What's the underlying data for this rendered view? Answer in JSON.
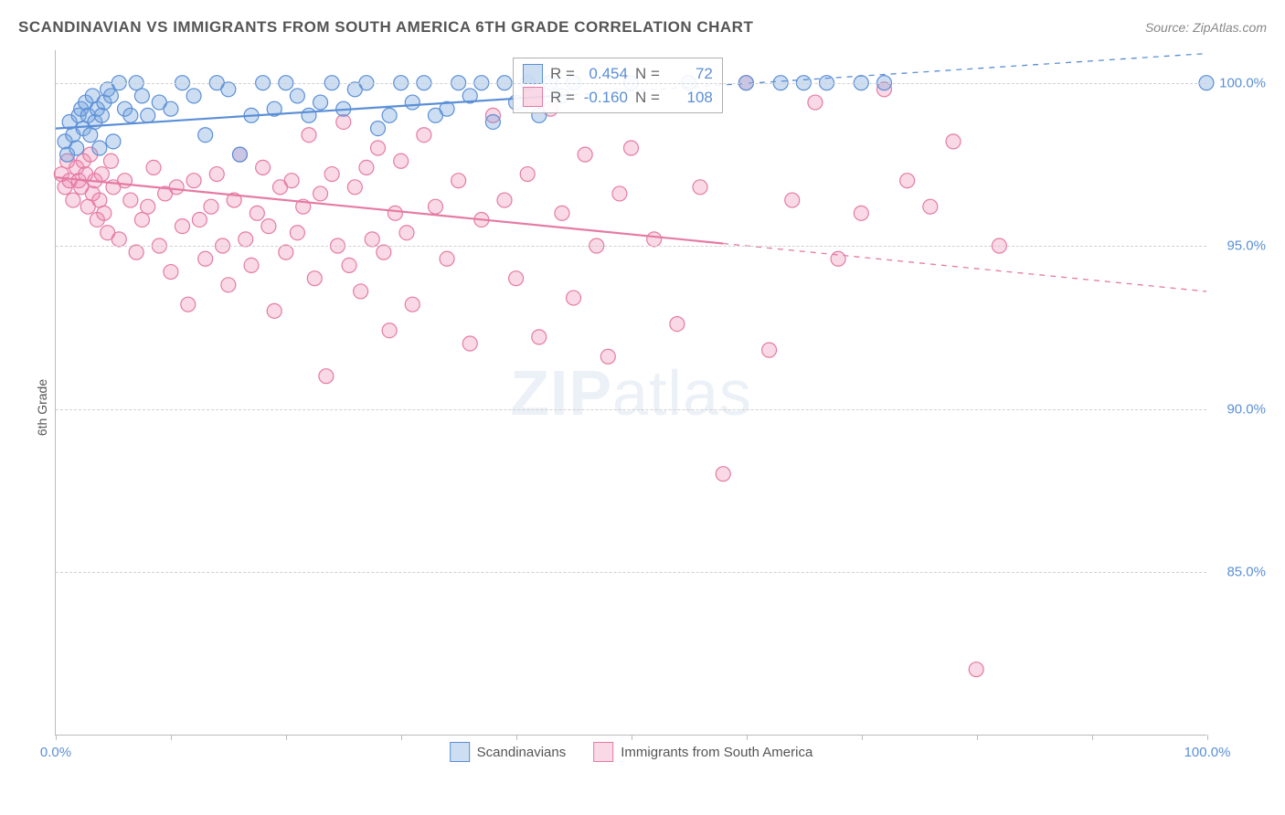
{
  "title": "SCANDINAVIAN VS IMMIGRANTS FROM SOUTH AMERICA 6TH GRADE CORRELATION CHART",
  "source": "Source: ZipAtlas.com",
  "y_axis_label": "6th Grade",
  "watermark_prefix": "ZIP",
  "watermark_suffix": "atlas",
  "colors": {
    "series_a_fill": "rgba(111,160,220,0.35)",
    "series_a_stroke": "#5b8fd6",
    "series_b_fill": "rgba(236,130,170,0.30)",
    "series_b_stroke": "#e57ba3",
    "grid": "#d0d0d0",
    "axis": "#bbbbbb",
    "tick_text": "#5b8fd6",
    "label_text": "#555555"
  },
  "chart": {
    "type": "scatter",
    "xlim": [
      0,
      100
    ],
    "ylim": [
      80,
      101
    ],
    "y_ticks": [
      {
        "v": 100,
        "label": "100.0%"
      },
      {
        "v": 95,
        "label": "95.0%"
      },
      {
        "v": 90,
        "label": "90.0%"
      },
      {
        "v": 85,
        "label": "85.0%"
      }
    ],
    "x_ticks_minor": [
      0,
      10,
      20,
      30,
      40,
      50,
      60,
      70,
      80,
      90,
      100
    ],
    "x_tick_labels": [
      {
        "v": 0,
        "label": "0.0%"
      },
      {
        "v": 100,
        "label": "100.0%"
      }
    ],
    "marker_radius": 8,
    "marker_stroke_width": 1.2,
    "line_width": 2.2,
    "series": [
      {
        "name": "Scandinavians",
        "key": "a",
        "R": "0.454",
        "N": "72",
        "trend": {
          "x1": 0,
          "y1": 98.6,
          "x2": 100,
          "y2": 100.9,
          "solid_until_x": 45
        },
        "points": [
          [
            0.8,
            98.2
          ],
          [
            1.0,
            97.8
          ],
          [
            1.2,
            98.8
          ],
          [
            1.5,
            98.4
          ],
          [
            1.8,
            98.0
          ],
          [
            2.0,
            99.0
          ],
          [
            2.2,
            99.2
          ],
          [
            2.4,
            98.6
          ],
          [
            2.6,
            99.4
          ],
          [
            2.8,
            99.0
          ],
          [
            3.0,
            98.4
          ],
          [
            3.2,
            99.6
          ],
          [
            3.4,
            98.8
          ],
          [
            3.6,
            99.2
          ],
          [
            3.8,
            98.0
          ],
          [
            4.0,
            99.0
          ],
          [
            4.2,
            99.4
          ],
          [
            4.5,
            99.8
          ],
          [
            4.8,
            99.6
          ],
          [
            5.0,
            98.2
          ],
          [
            5.5,
            100.0
          ],
          [
            6.0,
            99.2
          ],
          [
            6.5,
            99.0
          ],
          [
            7.0,
            100.0
          ],
          [
            7.5,
            99.6
          ],
          [
            8.0,
            99.0
          ],
          [
            9.0,
            99.4
          ],
          [
            10,
            99.2
          ],
          [
            11,
            100.0
          ],
          [
            12,
            99.6
          ],
          [
            13,
            98.4
          ],
          [
            14,
            100.0
          ],
          [
            15,
            99.8
          ],
          [
            16,
            97.8
          ],
          [
            17,
            99.0
          ],
          [
            18,
            100.0
          ],
          [
            19,
            99.2
          ],
          [
            20,
            100.0
          ],
          [
            21,
            99.6
          ],
          [
            22,
            99.0
          ],
          [
            23,
            99.4
          ],
          [
            24,
            100.0
          ],
          [
            25,
            99.2
          ],
          [
            26,
            99.8
          ],
          [
            27,
            100.0
          ],
          [
            28,
            98.6
          ],
          [
            29,
            99.0
          ],
          [
            30,
            100.0
          ],
          [
            31,
            99.4
          ],
          [
            32,
            100.0
          ],
          [
            33,
            99.0
          ],
          [
            34,
            99.2
          ],
          [
            35,
            100.0
          ],
          [
            36,
            99.6
          ],
          [
            37,
            100.0
          ],
          [
            38,
            98.8
          ],
          [
            39,
            100.0
          ],
          [
            40,
            99.4
          ],
          [
            41,
            100.0
          ],
          [
            42,
            99.0
          ],
          [
            43,
            100.0
          ],
          [
            44,
            99.6
          ],
          [
            45,
            100.0
          ],
          [
            50,
            100.0
          ],
          [
            55,
            100.0
          ],
          [
            60,
            100.0
          ],
          [
            63,
            100.0
          ],
          [
            65,
            100.0
          ],
          [
            67,
            100.0
          ],
          [
            70,
            100.0
          ],
          [
            72,
            100.0
          ],
          [
            100,
            100.0
          ]
        ]
      },
      {
        "name": "Immigrants from South America",
        "key": "b",
        "R": "-0.160",
        "N": "108",
        "trend": {
          "x1": 0,
          "y1": 97.1,
          "x2": 100,
          "y2": 93.6,
          "solid_until_x": 58
        },
        "points": [
          [
            0.5,
            97.2
          ],
          [
            0.8,
            96.8
          ],
          [
            1.0,
            97.6
          ],
          [
            1.2,
            97.0
          ],
          [
            1.5,
            96.4
          ],
          [
            1.8,
            97.4
          ],
          [
            2.0,
            97.0
          ],
          [
            2.2,
            96.8
          ],
          [
            2.4,
            97.6
          ],
          [
            2.6,
            97.2
          ],
          [
            2.8,
            96.2
          ],
          [
            3.0,
            97.8
          ],
          [
            3.2,
            96.6
          ],
          [
            3.4,
            97.0
          ],
          [
            3.6,
            95.8
          ],
          [
            3.8,
            96.4
          ],
          [
            4.0,
            97.2
          ],
          [
            4.2,
            96.0
          ],
          [
            4.5,
            95.4
          ],
          [
            4.8,
            97.6
          ],
          [
            5.0,
            96.8
          ],
          [
            5.5,
            95.2
          ],
          [
            6.0,
            97.0
          ],
          [
            6.5,
            96.4
          ],
          [
            7.0,
            94.8
          ],
          [
            7.5,
            95.8
          ],
          [
            8.0,
            96.2
          ],
          [
            8.5,
            97.4
          ],
          [
            9.0,
            95.0
          ],
          [
            9.5,
            96.6
          ],
          [
            10,
            94.2
          ],
          [
            10.5,
            96.8
          ],
          [
            11,
            95.6
          ],
          [
            11.5,
            93.2
          ],
          [
            12,
            97.0
          ],
          [
            12.5,
            95.8
          ],
          [
            13,
            94.6
          ],
          [
            13.5,
            96.2
          ],
          [
            14,
            97.2
          ],
          [
            14.5,
            95.0
          ],
          [
            15,
            93.8
          ],
          [
            15.5,
            96.4
          ],
          [
            16,
            97.8
          ],
          [
            16.5,
            95.2
          ],
          [
            17,
            94.4
          ],
          [
            17.5,
            96.0
          ],
          [
            18,
            97.4
          ],
          [
            18.5,
            95.6
          ],
          [
            19,
            93.0
          ],
          [
            19.5,
            96.8
          ],
          [
            20,
            94.8
          ],
          [
            20.5,
            97.0
          ],
          [
            21,
            95.4
          ],
          [
            21.5,
            96.2
          ],
          [
            22,
            98.4
          ],
          [
            22.5,
            94.0
          ],
          [
            23,
            96.6
          ],
          [
            23.5,
            91.0
          ],
          [
            24,
            97.2
          ],
          [
            24.5,
            95.0
          ],
          [
            25,
            98.8
          ],
          [
            25.5,
            94.4
          ],
          [
            26,
            96.8
          ],
          [
            26.5,
            93.6
          ],
          [
            27,
            97.4
          ],
          [
            27.5,
            95.2
          ],
          [
            28,
            98.0
          ],
          [
            28.5,
            94.8
          ],
          [
            29,
            92.4
          ],
          [
            29.5,
            96.0
          ],
          [
            30,
            97.6
          ],
          [
            30.5,
            95.4
          ],
          [
            31,
            93.2
          ],
          [
            32,
            98.4
          ],
          [
            33,
            96.2
          ],
          [
            34,
            94.6
          ],
          [
            35,
            97.0
          ],
          [
            36,
            92.0
          ],
          [
            37,
            95.8
          ],
          [
            38,
            99.0
          ],
          [
            39,
            96.4
          ],
          [
            40,
            94.0
          ],
          [
            41,
            97.2
          ],
          [
            42,
            92.2
          ],
          [
            43,
            99.2
          ],
          [
            44,
            96.0
          ],
          [
            45,
            93.4
          ],
          [
            46,
            97.8
          ],
          [
            47,
            95.0
          ],
          [
            48,
            91.6
          ],
          [
            49,
            96.6
          ],
          [
            50,
            98.0
          ],
          [
            52,
            95.2
          ],
          [
            54,
            92.6
          ],
          [
            56,
            96.8
          ],
          [
            58,
            88.0
          ],
          [
            60,
            100.0
          ],
          [
            62,
            91.8
          ],
          [
            64,
            96.4
          ],
          [
            66,
            99.4
          ],
          [
            68,
            94.6
          ],
          [
            70,
            96.0
          ],
          [
            72,
            99.8
          ],
          [
            74,
            97.0
          ],
          [
            76,
            96.2
          ],
          [
            78,
            98.2
          ],
          [
            80,
            82.0
          ],
          [
            82,
            95.0
          ]
        ]
      }
    ]
  },
  "stats_box": {
    "r_prefix": "R = ",
    "n_prefix": "N = "
  },
  "legend_labels": {
    "a": "Scandinavians",
    "b": "Immigrants from South America"
  }
}
